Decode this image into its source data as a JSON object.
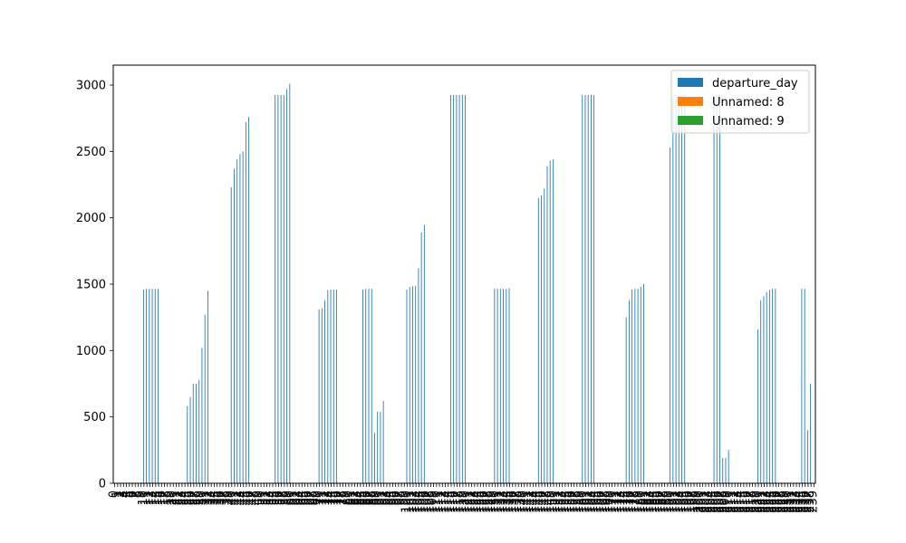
{
  "chart_data": {
    "type": "bar",
    "title": "",
    "xlabel": "",
    "ylabel": "",
    "ylim": [
      0,
      3150
    ],
    "yticks": [
      0,
      500,
      1000,
      1500,
      2000,
      2500,
      3000
    ],
    "grid": false,
    "legend_position": "top-right",
    "n_categories": 240,
    "series": [
      {
        "name": "departure_day",
        "color": "#1f77b4",
        "groups": [
          {
            "start": 10,
            "values": [
              1460,
              1465,
              1465,
              1465,
              1465,
              1465
            ]
          },
          {
            "start": 25,
            "values": [
              580,
              650,
              750,
              750,
              780,
              1020,
              1270,
              1450
            ]
          },
          {
            "start": 40,
            "values": [
              2230,
              2370,
              2440,
              2480,
              2500,
              2720,
              2760
            ]
          },
          {
            "start": 55,
            "values": [
              2925,
              2925,
              2925,
              2925,
              2970,
              3010
            ]
          },
          {
            "start": 70,
            "values": [
              1310,
              1320,
              1380,
              1455,
              1460,
              1460,
              1460
            ]
          },
          {
            "start": 85,
            "values": [
              1460,
              1465,
              1465,
              1465,
              380,
              540,
              540,
              620
            ]
          },
          {
            "start": 100,
            "values": [
              1460,
              1480,
              1485,
              1485,
              1620,
              1890,
              1945
            ]
          },
          {
            "start": 115,
            "values": [
              2925,
              2925,
              2925,
              2925,
              2925,
              2925
            ]
          },
          {
            "start": 130,
            "values": [
              1465,
              1465,
              1465,
              1465,
              1465,
              1470
            ]
          },
          {
            "start": 145,
            "values": [
              2150,
              2170,
              2220,
              2390,
              2430,
              2440
            ]
          },
          {
            "start": 160,
            "values": [
              2925,
              2925,
              2925,
              2925,
              2925
            ]
          },
          {
            "start": 175,
            "values": [
              1250,
              1380,
              1460,
              1465,
              1465,
              1480,
              1500
            ]
          },
          {
            "start": 190,
            "values": [
              2530,
              2925,
              2925,
              2925,
              2925,
              2925
            ]
          },
          {
            "start": 205,
            "values": [
              2925,
              2925,
              2925,
              190,
              190,
              250
            ]
          },
          {
            "start": 220,
            "values": [
              1160,
              1380,
              1410,
              1440,
              1455,
              1465,
              1465
            ]
          },
          {
            "start": 235,
            "values": [
              1465,
              1465,
              400,
              750
            ]
          }
        ]
      },
      {
        "name": "Unnamed: 8",
        "color": "#ff7f0e",
        "groups": []
      },
      {
        "name": "Unnamed: 9",
        "color": "#2ca02c",
        "groups": []
      }
    ]
  }
}
